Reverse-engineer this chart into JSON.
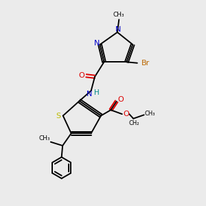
{
  "bg_color": "#ebebeb",
  "line_color": "#000000",
  "N_color": "#0000cc",
  "O_color": "#dd0000",
  "S_color": "#bbbb00",
  "Br_color": "#bb6600",
  "H_color": "#008888",
  "figsize": [
    3.0,
    3.0
  ],
  "dpi": 100,
  "xlim": [
    0,
    10
  ],
  "ylim": [
    0,
    10
  ]
}
